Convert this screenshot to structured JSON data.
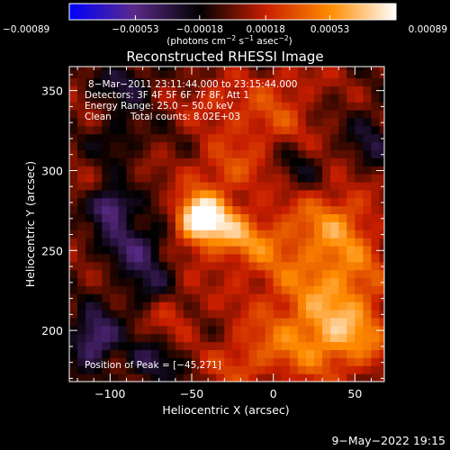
{
  "chart_data": {
    "type": "heatmap",
    "title": "Reconstructed RHESSI Image",
    "xlabel": "Heliocentric X (arcsec)",
    "ylabel": "Heliocentric Y (arcsec)",
    "xlim": [
      -125,
      68
    ],
    "ylim": [
      168,
      365
    ],
    "x_ticks": [
      -100,
      -50,
      0,
      50
    ],
    "y_ticks": [
      200,
      250,
      300,
      350
    ],
    "x_tick_labels": [
      "−100",
      "−50",
      "0",
      "50"
    ],
    "y_tick_labels": [
      "200",
      "250",
      "300",
      "350"
    ],
    "colorbar": {
      "range": [
        -0.00089,
        0.00089
      ],
      "ticks": [
        -0.00089,
        -0.00053,
        -0.00018,
        0.00018,
        0.00053,
        0.00089
      ],
      "tick_labels": [
        "−0.00089",
        "−0.00053",
        "−0.00018",
        "0.00018",
        "0.00053",
        "0.00089"
      ],
      "units_prefix": "(photons cm",
      "units_exp1": "−2",
      "units_mid": " s",
      "units_exp2": "−1",
      "units_mid2": " asec",
      "units_exp3": "−2",
      "units_suffix": ")",
      "colors": [
        "#0000ff",
        "#5a2a88",
        "#000000",
        "#c81e00",
        "#ff8c00",
        "#ffffff"
      ]
    },
    "annotations": {
      "time_range": "8−Mar−2011 23:11:44.000 to 23:15:44.000",
      "detectors": "Detectors: 3F 4F 5F 6F 7F 8F, Att 1",
      "energy": "Energy Range: 25.0 − 50.0 keV",
      "clean": "Clean",
      "total_counts": "Total counts: 8.02E+03",
      "peak": "Position of Peak = [−45,271]"
    },
    "sources": [
      {
        "x": -45,
        "y": 271,
        "sx": 10,
        "sy": 10,
        "amp": 0.00089
      },
      {
        "x": -25,
        "y": 262,
        "sx": 18,
        "sy": 12,
        "amp": 0.00045
      },
      {
        "x": 10,
        "y": 245,
        "sx": 28,
        "sy": 25,
        "amp": 0.0003
      },
      {
        "x": 40,
        "y": 270,
        "sx": 16,
        "sy": 15,
        "amp": 0.00032
      },
      {
        "x": -30,
        "y": 300,
        "sx": 16,
        "sy": 12,
        "amp": 0.0003
      },
      {
        "x": -5,
        "y": 330,
        "sx": 18,
        "sy": 12,
        "amp": 0.00028
      },
      {
        "x": 45,
        "y": 230,
        "sx": 18,
        "sy": 20,
        "amp": 0.00035
      },
      {
        "x": 20,
        "y": 195,
        "sx": 22,
        "sy": 18,
        "amp": 0.0004
      },
      {
        "x": 50,
        "y": 195,
        "sx": 18,
        "sy": 15,
        "amp": 0.00032
      },
      {
        "x": -65,
        "y": 215,
        "sx": 12,
        "sy": 12,
        "amp": 0.00028
      },
      {
        "x": -20,
        "y": 180,
        "sx": 14,
        "sy": 12,
        "amp": 0.00026
      },
      {
        "x": -35,
        "y": 345,
        "sx": 14,
        "sy": 10,
        "amp": 0.00022
      },
      {
        "x": 10,
        "y": 355,
        "sx": 14,
        "sy": 10,
        "amp": 0.0002
      },
      {
        "x": -100,
        "y": 278,
        "sx": 8,
        "sy": 8,
        "amp": -0.0006
      },
      {
        "x": -110,
        "y": 195,
        "sx": 10,
        "sy": 12,
        "amp": -0.00055
      },
      {
        "x": -85,
        "y": 255,
        "sx": 14,
        "sy": 12,
        "amp": -0.0004
      },
      {
        "x": -75,
        "y": 225,
        "sx": 12,
        "sy": 12,
        "amp": -0.00035
      },
      {
        "x": -90,
        "y": 355,
        "sx": 12,
        "sy": 10,
        "amp": -0.0003
      },
      {
        "x": -95,
        "y": 320,
        "sx": 10,
        "sy": 10,
        "amp": -0.00025
      },
      {
        "x": -75,
        "y": 180,
        "sx": 12,
        "sy": 10,
        "amp": -0.0003
      },
      {
        "x": 60,
        "y": 320,
        "sx": 10,
        "sy": 14,
        "amp": -0.00025
      },
      {
        "x": 15,
        "y": 300,
        "sx": 10,
        "sy": 10,
        "amp": -0.00018
      },
      {
        "x": -10,
        "y": 270,
        "sx": 8,
        "sy": 8,
        "amp": -0.00012
      }
    ]
  },
  "footer": {
    "date": "9−May−2022 19:15"
  }
}
